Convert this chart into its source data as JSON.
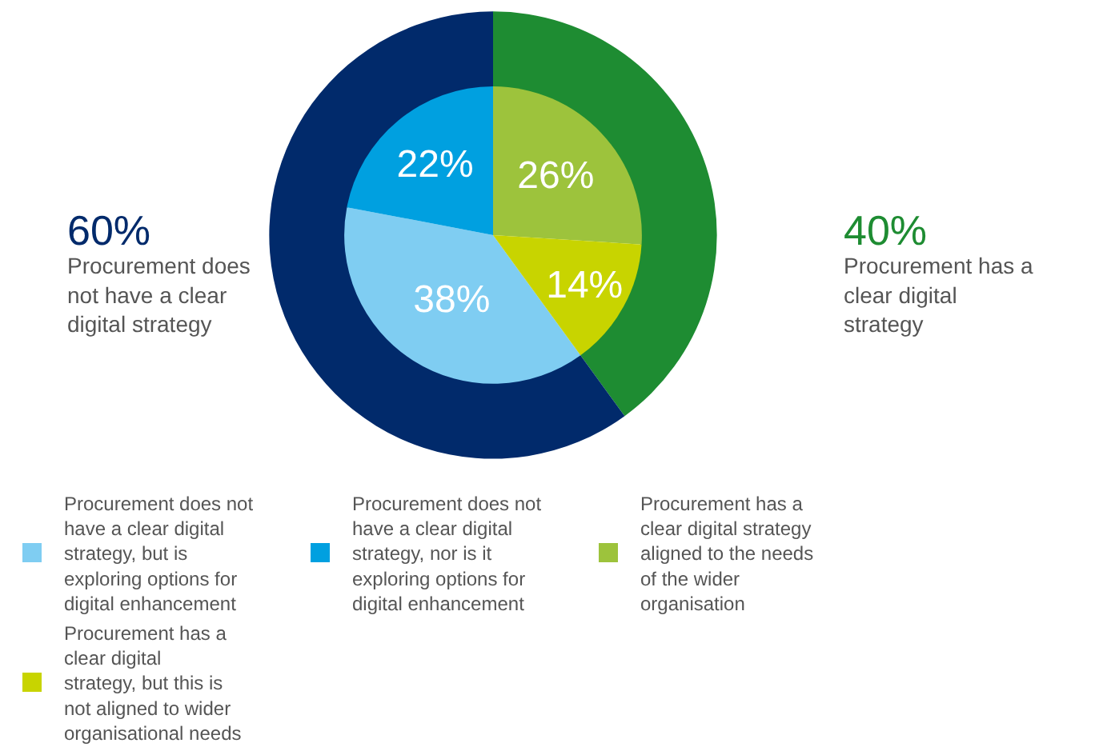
{
  "chart_data": [
    {
      "type": "donut",
      "categories": [
        "Procurement has a clear digital strategy",
        "Procurement does not have a clear digital strategy"
      ],
      "values": [
        40,
        60
      ],
      "colors": [
        "#1e8c32",
        "#012a6b"
      ],
      "value_labels": [
        "40%",
        "60%"
      ]
    },
    {
      "type": "pie",
      "categories": [
        "Procurement does not have a clear digital strategy, but is exploring options for digital enhancement",
        "Procurement does not have a clear digital strategy, nor is it exploring options for digital enhancement",
        "Procurement has a clear digital strategy aligned to the needs of the wider organisation",
        "Procurement has a clear digital strategy, but this is not aligned to wider organisational needs"
      ],
      "values": [
        38,
        22,
        26,
        14
      ],
      "colors": [
        "#7fcdf2",
        "#00a0e0",
        "#9dc33c",
        "#c8d400"
      ],
      "value_labels": [
        "38%",
        "22%",
        "26%",
        "14%"
      ],
      "legend": "bottom"
    }
  ]
}
